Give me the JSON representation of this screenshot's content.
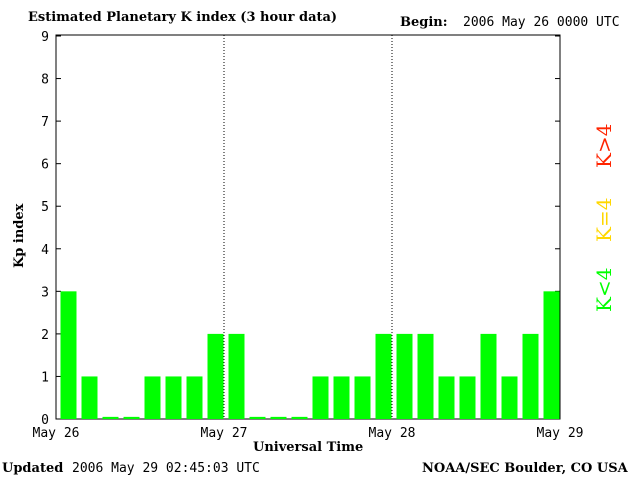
{
  "header": {
    "title": "Estimated Planetary K index (3 hour data)",
    "begin_label": "Begin:",
    "begin_value": "2006 May 26 0000 UTC"
  },
  "footer": {
    "updated_label": "Updated",
    "updated_value": "2006 May 29 02:45:03 UTC",
    "credit": "NOAA/SEC Boulder, CO USA"
  },
  "legend": {
    "high": {
      "label": "K>4",
      "color": "#ff2400"
    },
    "equal": {
      "label": "K=4",
      "color": "#ffd700"
    },
    "low": {
      "label": "K<4",
      "color": "#00ff00"
    }
  },
  "chart_data": {
    "type": "bar",
    "xlabel": "Universal Time",
    "ylabel": "Kp index",
    "ylim": [
      0,
      9
    ],
    "yticks": [
      "0",
      "1",
      "2",
      "3",
      "4",
      "5",
      "6",
      "7",
      "8",
      "9"
    ],
    "xtick_labels": [
      "May 26",
      "May 27",
      "May 28",
      "May 29"
    ],
    "day_dividers": [
      "May 27",
      "May 28"
    ],
    "bar_color": "#00ff00",
    "values": [
      3,
      1,
      0.05,
      0.05,
      1,
      1,
      1,
      2,
      2,
      0.05,
      0.05,
      0.05,
      1,
      1,
      1,
      2,
      2,
      2,
      1,
      1,
      2,
      1,
      2,
      3
    ]
  }
}
